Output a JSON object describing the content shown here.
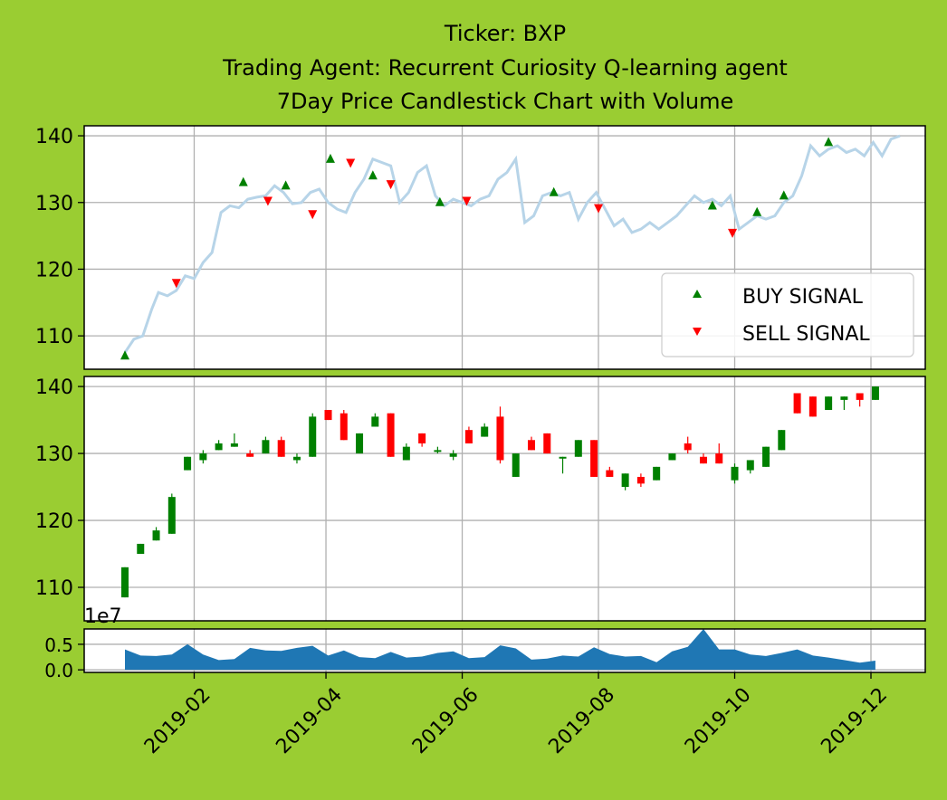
{
  "title_lines": [
    "Ticker: BXP",
    "Trading Agent: Recurrent Curiosity Q-learning agent",
    "7Day Price Candlestick Chart with Volume"
  ],
  "colors": {
    "background": "#9acd32",
    "price_line": "#b7d4e8",
    "buy": "#008000",
    "sell": "#ff0000",
    "volume": "#1f77b4",
    "grid": "#b0b0b0"
  },
  "chart_data": [
    {
      "type": "line",
      "name": "price-with-signals",
      "ylim": [
        105,
        141.5
      ],
      "yticks": [
        110,
        120,
        130,
        140
      ],
      "grid": true,
      "legend_position": "lower-right",
      "legend": [
        "BUY SIGNAL",
        "SELL SIGNAL"
      ],
      "price": [
        [
          "2019-01-01",
          107.5
        ],
        [
          "2019-01-05",
          109.5
        ],
        [
          "2019-01-09",
          110.0
        ],
        [
          "2019-01-13",
          114.0
        ],
        [
          "2019-01-16",
          116.5
        ],
        [
          "2019-01-20",
          116.0
        ],
        [
          "2019-01-24",
          116.8
        ],
        [
          "2019-01-28",
          119.0
        ],
        [
          "2019-02-01",
          118.6
        ],
        [
          "2019-02-05",
          121.0
        ],
        [
          "2019-02-09",
          122.5
        ],
        [
          "2019-02-13",
          128.5
        ],
        [
          "2019-02-17",
          129.5
        ],
        [
          "2019-02-21",
          129.2
        ],
        [
          "2019-02-25",
          130.5
        ],
        [
          "2019-03-01",
          130.8
        ],
        [
          "2019-03-05",
          131.0
        ],
        [
          "2019-03-09",
          132.5
        ],
        [
          "2019-03-13",
          131.5
        ],
        [
          "2019-03-17",
          129.8
        ],
        [
          "2019-03-21",
          130.0
        ],
        [
          "2019-03-25",
          131.5
        ],
        [
          "2019-03-29",
          132.0
        ],
        [
          "2019-04-02",
          130.0
        ],
        [
          "2019-04-06",
          129.0
        ],
        [
          "2019-04-10",
          128.5
        ],
        [
          "2019-04-14",
          131.5
        ],
        [
          "2019-04-18",
          133.5
        ],
        [
          "2019-04-22",
          136.5
        ],
        [
          "2019-04-26",
          136.0
        ],
        [
          "2019-04-30",
          135.5
        ],
        [
          "2019-05-04",
          130.0
        ],
        [
          "2019-05-08",
          131.5
        ],
        [
          "2019-05-12",
          134.5
        ],
        [
          "2019-05-16",
          135.5
        ],
        [
          "2019-05-20",
          131.0
        ],
        [
          "2019-05-24",
          129.5
        ],
        [
          "2019-05-28",
          130.5
        ],
        [
          "2019-06-01",
          130.0
        ],
        [
          "2019-06-05",
          129.5
        ],
        [
          "2019-06-09",
          130.5
        ],
        [
          "2019-06-13",
          131.0
        ],
        [
          "2019-06-17",
          133.5
        ],
        [
          "2019-06-21",
          134.5
        ],
        [
          "2019-06-25",
          136.5
        ],
        [
          "2019-06-29",
          127.0
        ],
        [
          "2019-07-03",
          128.0
        ],
        [
          "2019-07-07",
          131.0
        ],
        [
          "2019-07-11",
          131.5
        ],
        [
          "2019-07-15",
          131.0
        ],
        [
          "2019-07-19",
          131.5
        ],
        [
          "2019-07-23",
          127.5
        ],
        [
          "2019-07-27",
          130.0
        ],
        [
          "2019-07-31",
          131.5
        ],
        [
          "2019-08-04",
          129.0
        ],
        [
          "2019-08-08",
          126.5
        ],
        [
          "2019-08-12",
          127.5
        ],
        [
          "2019-08-16",
          125.5
        ],
        [
          "2019-08-20",
          126.0
        ],
        [
          "2019-08-24",
          127.0
        ],
        [
          "2019-08-28",
          126.0
        ],
        [
          "2019-09-01",
          127.0
        ],
        [
          "2019-09-05",
          128.0
        ],
        [
          "2019-09-09",
          129.5
        ],
        [
          "2019-09-13",
          131.0
        ],
        [
          "2019-09-17",
          130.0
        ],
        [
          "2019-09-21",
          130.5
        ],
        [
          "2019-09-25",
          129.5
        ],
        [
          "2019-09-29",
          131.0
        ],
        [
          "2019-10-03",
          126.0
        ],
        [
          "2019-10-07",
          127.0
        ],
        [
          "2019-10-11",
          128.0
        ],
        [
          "2019-10-15",
          127.5
        ],
        [
          "2019-10-19",
          128.0
        ],
        [
          "2019-10-23",
          130.0
        ],
        [
          "2019-10-27",
          131.0
        ],
        [
          "2019-10-31",
          134.0
        ],
        [
          "2019-11-04",
          138.5
        ],
        [
          "2019-11-08",
          137.0
        ],
        [
          "2019-11-12",
          138.0
        ],
        [
          "2019-11-16",
          138.5
        ],
        [
          "2019-11-20",
          137.5
        ],
        [
          "2019-11-24",
          138.0
        ],
        [
          "2019-11-28",
          137.0
        ],
        [
          "2019-12-02",
          139.0
        ],
        [
          "2019-12-06",
          137.0
        ],
        [
          "2019-12-10",
          139.5
        ],
        [
          "2019-12-14",
          140.0
        ]
      ],
      "buy_signals": [
        [
          "2019-01-01",
          107.0
        ],
        [
          "2019-02-23",
          133.0
        ],
        [
          "2019-03-14",
          132.5
        ],
        [
          "2019-04-03",
          136.5
        ],
        [
          "2019-04-22",
          134.0
        ],
        [
          "2019-05-22",
          130.0
        ],
        [
          "2019-07-12",
          131.5
        ],
        [
          "2019-09-21",
          129.5
        ],
        [
          "2019-10-11",
          128.5
        ],
        [
          "2019-10-23",
          131.0
        ],
        [
          "2019-11-12",
          139.0
        ]
      ],
      "sell_signals": [
        [
          "2019-01-24",
          118.0
        ],
        [
          "2019-03-06",
          130.3
        ],
        [
          "2019-03-26",
          128.3
        ],
        [
          "2019-04-12",
          136.0
        ],
        [
          "2019-04-30",
          132.8
        ],
        [
          "2019-06-03",
          130.3
        ],
        [
          "2019-08-01",
          129.2
        ],
        [
          "2019-09-30",
          125.5
        ]
      ]
    },
    {
      "type": "candlestick",
      "name": "7day-candles",
      "ylim": [
        105,
        141.5
      ],
      "yticks": [
        110,
        120,
        130,
        140
      ],
      "grid": true,
      "candles": [
        [
          "2019-01-01",
          108.5,
          113.0,
          108.5,
          113.0
        ],
        [
          "2019-01-08",
          115.0,
          116.5,
          115.0,
          116.5
        ],
        [
          "2019-01-15",
          117.0,
          119.0,
          117.0,
          118.5
        ],
        [
          "2019-01-22",
          118.0,
          124.0,
          118.0,
          123.5
        ],
        [
          "2019-01-29",
          127.5,
          129.5,
          127.5,
          129.5
        ],
        [
          "2019-02-05",
          129.0,
          130.5,
          128.5,
          130.0
        ],
        [
          "2019-02-12",
          130.5,
          132.0,
          130.5,
          131.5
        ],
        [
          "2019-02-19",
          131.0,
          133.0,
          131.0,
          131.5
        ],
        [
          "2019-02-26",
          130.0,
          130.5,
          129.5,
          129.5
        ],
        [
          "2019-03-05",
          130.0,
          132.5,
          130.0,
          132.0
        ],
        [
          "2019-03-12",
          132.0,
          132.5,
          129.5,
          129.5
        ],
        [
          "2019-03-19",
          129.0,
          130.0,
          128.5,
          129.5
        ],
        [
          "2019-03-26",
          129.5,
          136.0,
          129.5,
          135.5
        ],
        [
          "2019-04-02",
          136.5,
          136.5,
          135.0,
          135.0
        ],
        [
          "2019-04-09",
          136.0,
          136.5,
          132.0,
          132.0
        ],
        [
          "2019-04-16",
          130.0,
          133.0,
          130.0,
          133.0
        ],
        [
          "2019-04-23",
          134.0,
          136.0,
          134.0,
          135.5
        ],
        [
          "2019-04-30",
          136.0,
          136.0,
          129.5,
          129.5
        ],
        [
          "2019-05-07",
          129.0,
          131.5,
          129.0,
          131.0
        ],
        [
          "2019-05-14",
          133.0,
          133.0,
          131.0,
          131.5
        ],
        [
          "2019-05-21",
          130.5,
          131.0,
          130.0,
          130.5
        ],
        [
          "2019-05-28",
          129.5,
          130.5,
          129.0,
          130.0
        ],
        [
          "2019-06-04",
          133.5,
          134.0,
          131.5,
          131.5
        ],
        [
          "2019-06-11",
          132.5,
          134.5,
          132.5,
          134.0
        ],
        [
          "2019-06-18",
          135.5,
          137.0,
          128.5,
          129.0
        ],
        [
          "2019-06-25",
          126.5,
          130.0,
          126.5,
          130.0
        ],
        [
          "2019-07-02",
          132.0,
          132.5,
          130.5,
          130.5
        ],
        [
          "2019-07-09",
          133.0,
          133.0,
          130.0,
          130.0
        ],
        [
          "2019-07-16",
          129.5,
          129.5,
          127.0,
          129.5
        ],
        [
          "2019-07-23",
          129.5,
          132.0,
          129.5,
          132.0
        ],
        [
          "2019-07-30",
          132.0,
          132.0,
          126.5,
          126.5
        ],
        [
          "2019-08-06",
          127.5,
          128.0,
          126.5,
          126.5
        ],
        [
          "2019-08-13",
          125.0,
          127.0,
          124.5,
          127.0
        ],
        [
          "2019-08-20",
          126.5,
          127.0,
          125.0,
          125.5
        ],
        [
          "2019-08-27",
          126.0,
          128.0,
          126.0,
          128.0
        ],
        [
          "2019-09-03",
          129.0,
          130.0,
          129.0,
          130.0
        ],
        [
          "2019-09-10",
          131.5,
          132.5,
          130.0,
          130.5
        ],
        [
          "2019-09-17",
          129.5,
          130.0,
          128.5,
          128.5
        ],
        [
          "2019-09-24",
          130.0,
          131.5,
          128.5,
          128.5
        ],
        [
          "2019-10-01",
          126.0,
          128.5,
          125.5,
          128.0
        ],
        [
          "2019-10-08",
          127.5,
          129.0,
          127.0,
          129.0
        ],
        [
          "2019-10-15",
          128.0,
          131.0,
          128.0,
          131.0
        ],
        [
          "2019-10-22",
          130.5,
          133.5,
          130.5,
          133.5
        ],
        [
          "2019-10-29",
          139.0,
          139.0,
          136.0,
          136.0
        ],
        [
          "2019-11-05",
          138.5,
          138.5,
          135.5,
          135.5
        ],
        [
          "2019-11-12",
          136.5,
          138.5,
          136.5,
          138.5
        ],
        [
          "2019-11-19",
          138.0,
          138.5,
          136.5,
          138.5
        ],
        [
          "2019-11-26",
          139.0,
          139.0,
          137.0,
          138.0
        ],
        [
          "2019-12-03",
          138.0,
          140.0,
          138.0,
          140.0
        ]
      ]
    },
    {
      "type": "area",
      "name": "volume",
      "ylim": [
        -0.05,
        0.8
      ],
      "yticks": [
        "0.0",
        "0.5"
      ],
      "offset_text": "1e7",
      "grid": true,
      "x_tick_labels": [
        "2019-02",
        "2019-04",
        "2019-06",
        "2019-08",
        "2019-10",
        "2019-12"
      ],
      "volume": [
        [
          "2019-01-01",
          0.4
        ],
        [
          "2019-01-08",
          0.28
        ],
        [
          "2019-01-15",
          0.27
        ],
        [
          "2019-01-22",
          0.3
        ],
        [
          "2019-01-29",
          0.5
        ],
        [
          "2019-02-05",
          0.3
        ],
        [
          "2019-02-12",
          0.19
        ],
        [
          "2019-02-19",
          0.21
        ],
        [
          "2019-02-26",
          0.43
        ],
        [
          "2019-03-05",
          0.38
        ],
        [
          "2019-03-12",
          0.37
        ],
        [
          "2019-03-19",
          0.43
        ],
        [
          "2019-03-26",
          0.47
        ],
        [
          "2019-04-02",
          0.28
        ],
        [
          "2019-04-09",
          0.38
        ],
        [
          "2019-04-16",
          0.25
        ],
        [
          "2019-04-23",
          0.23
        ],
        [
          "2019-04-30",
          0.35
        ],
        [
          "2019-05-07",
          0.24
        ],
        [
          "2019-05-14",
          0.26
        ],
        [
          "2019-05-21",
          0.33
        ],
        [
          "2019-05-28",
          0.36
        ],
        [
          "2019-06-04",
          0.23
        ],
        [
          "2019-06-11",
          0.25
        ],
        [
          "2019-06-18",
          0.48
        ],
        [
          "2019-06-25",
          0.42
        ],
        [
          "2019-07-02",
          0.2
        ],
        [
          "2019-07-09",
          0.22
        ],
        [
          "2019-07-16",
          0.28
        ],
        [
          "2019-07-23",
          0.26
        ],
        [
          "2019-07-30",
          0.44
        ],
        [
          "2019-08-06",
          0.31
        ],
        [
          "2019-08-13",
          0.26
        ],
        [
          "2019-08-20",
          0.27
        ],
        [
          "2019-08-27",
          0.15
        ],
        [
          "2019-09-03",
          0.36
        ],
        [
          "2019-09-10",
          0.45
        ],
        [
          "2019-09-17",
          0.8
        ],
        [
          "2019-09-24",
          0.4
        ],
        [
          "2019-10-01",
          0.4
        ],
        [
          "2019-10-08",
          0.3
        ],
        [
          "2019-10-15",
          0.27
        ],
        [
          "2019-10-22",
          0.33
        ],
        [
          "2019-10-29",
          0.4
        ],
        [
          "2019-11-05",
          0.28
        ],
        [
          "2019-11-12",
          0.24
        ],
        [
          "2019-11-19",
          0.19
        ],
        [
          "2019-11-26",
          0.14
        ],
        [
          "2019-12-03",
          0.18
        ]
      ]
    }
  ]
}
